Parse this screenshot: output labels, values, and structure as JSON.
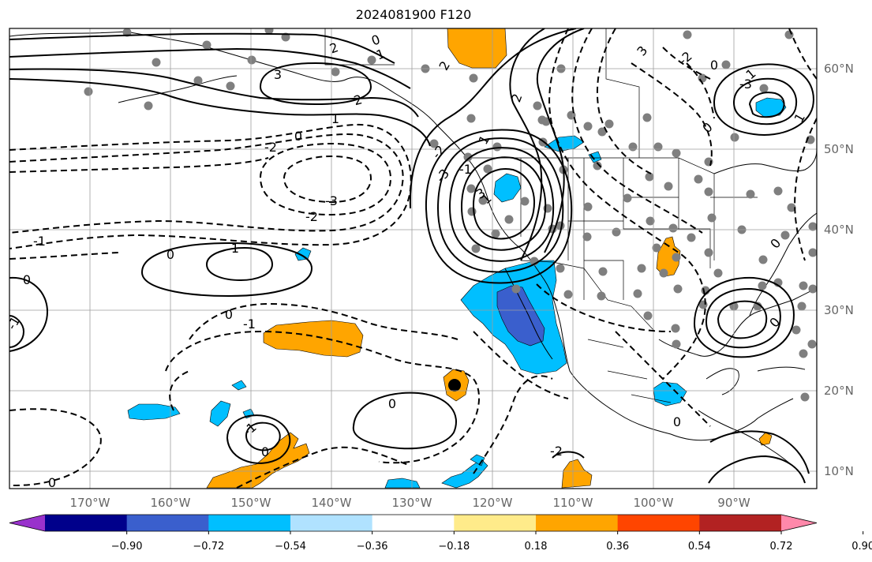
{
  "title": "2024081900 F120",
  "lon_ticks": [
    "170°W",
    "160°W",
    "150°W",
    "140°W",
    "130°W",
    "120°W",
    "110°W",
    "100°W",
    "90°W"
  ],
  "lat_ticks": [
    "60°N",
    "50°N",
    "40°N",
    "30°N",
    "20°N",
    "10°N"
  ],
  "colorbar": {
    "labels": [
      "−0.90",
      "−0.72",
      "−0.54",
      "−0.36",
      "−0.18",
      "0.18",
      "0.36",
      "0.54",
      "0.72",
      "0.90"
    ],
    "colors": [
      "#9932cc",
      "#00008b",
      "#3a5fcd",
      "#00bfff",
      "#b0e2ff",
      "#ffffff",
      "#ffeb8a",
      "#ffa500",
      "#ff4500",
      "#b22222",
      "#ff88aa"
    ]
  },
  "contour_labels": [
    "2",
    "0",
    "1",
    "3",
    "2",
    "1",
    "2",
    "0",
    "-2",
    "-3",
    "-2",
    "-1",
    "0",
    "1",
    "0",
    "-1",
    "-1",
    "0",
    "-1",
    "0",
    "1",
    "0",
    "1",
    "-3",
    "-2",
    "-1",
    "0",
    "3",
    "2",
    "3",
    "-2",
    "-3",
    "1",
    "0",
    "1",
    "0",
    "0",
    "0",
    "0",
    "-2"
  ],
  "fill_colors": {
    "orange": "#ffa500",
    "light_blue": "#00bfff",
    "dark_blue": "#3a5fcd"
  }
}
